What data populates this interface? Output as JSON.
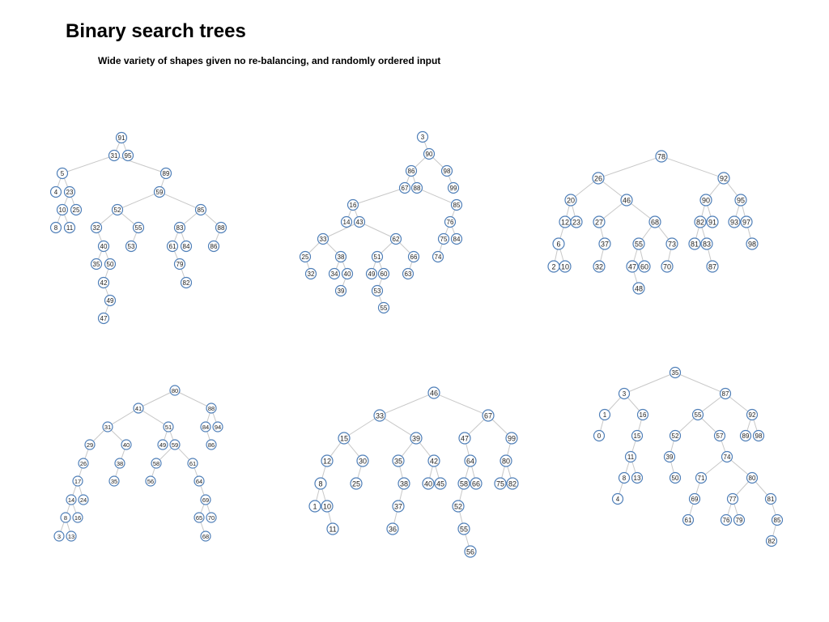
{
  "title": "Binary search trees",
  "subtitle": "Wide variety of shapes given no re-balancing, and randomly ordered input",
  "colors": {
    "node_stroke": "#4f7fb8",
    "edge": "#c8c8c8",
    "node_fill": "#ffffff"
  },
  "trees": [
    {
      "nodes": [
        {
          "id": "91",
          "label": "91"
        },
        {
          "id": "31",
          "label": "31",
          "parent": "91"
        },
        {
          "id": "95",
          "label": "95",
          "parent": "91"
        },
        {
          "id": "5",
          "label": "5",
          "parent": "31"
        },
        {
          "id": "89",
          "label": "89",
          "parent": "31"
        },
        {
          "id": "4",
          "label": "4",
          "parent": "5"
        },
        {
          "id": "23",
          "label": "23",
          "parent": "5"
        },
        {
          "id": "10",
          "label": "10",
          "parent": "23"
        },
        {
          "id": "25",
          "label": "25",
          "parent": "23"
        },
        {
          "id": "8",
          "label": "8",
          "parent": "10"
        },
        {
          "id": "11",
          "label": "11",
          "parent": "10"
        },
        {
          "id": "59",
          "label": "59",
          "parent": "89"
        },
        {
          "id": "52",
          "label": "52",
          "parent": "59"
        },
        {
          "id": "85",
          "label": "85",
          "parent": "59"
        },
        {
          "id": "32",
          "label": "32",
          "parent": "52"
        },
        {
          "id": "55",
          "label": "55",
          "parent": "52"
        },
        {
          "id": "40",
          "label": "40",
          "parent": "32"
        },
        {
          "id": "35",
          "label": "35",
          "parent": "40"
        },
        {
          "id": "50",
          "label": "50",
          "parent": "40"
        },
        {
          "id": "42",
          "label": "42",
          "parent": "50"
        },
        {
          "id": "49",
          "label": "49",
          "parent": "42"
        },
        {
          "id": "47",
          "label": "47",
          "parent": "49"
        },
        {
          "id": "53",
          "label": "53",
          "parent": "55"
        },
        {
          "id": "83",
          "label": "83",
          "parent": "85"
        },
        {
          "id": "88",
          "label": "88",
          "parent": "85"
        },
        {
          "id": "61",
          "label": "61",
          "parent": "83"
        },
        {
          "id": "84",
          "label": "84",
          "parent": "83"
        },
        {
          "id": "79",
          "label": "79",
          "parent": "61"
        },
        {
          "id": "82",
          "label": "82",
          "parent": "79"
        },
        {
          "id": "86",
          "label": "86",
          "parent": "88"
        }
      ]
    },
    {
      "nodes": [
        {
          "id": "3",
          "label": "3"
        },
        {
          "id": "90",
          "label": "90",
          "parent": "3"
        },
        {
          "id": "86",
          "label": "86",
          "parent": "90"
        },
        {
          "id": "98",
          "label": "98",
          "parent": "90"
        },
        {
          "id": "67",
          "label": "67",
          "parent": "86"
        },
        {
          "id": "88",
          "label": "88",
          "parent": "86"
        },
        {
          "id": "99",
          "label": "99",
          "parent": "98"
        },
        {
          "id": "16",
          "label": "16",
          "parent": "67"
        },
        {
          "id": "85",
          "label": "85",
          "parent": "88"
        },
        {
          "id": "14",
          "label": "14",
          "parent": "16"
        },
        {
          "id": "43",
          "label": "43",
          "parent": "16"
        },
        {
          "id": "33",
          "label": "33",
          "parent": "43"
        },
        {
          "id": "62",
          "label": "62",
          "parent": "43"
        },
        {
          "id": "25",
          "label": "25",
          "parent": "33"
        },
        {
          "id": "38",
          "label": "38",
          "parent": "33"
        },
        {
          "id": "32",
          "label": "32",
          "parent": "25"
        },
        {
          "id": "34",
          "label": "34",
          "parent": "38"
        },
        {
          "id": "40",
          "label": "40",
          "parent": "38"
        },
        {
          "id": "39",
          "label": "39",
          "parent": "40"
        },
        {
          "id": "51",
          "label": "51",
          "parent": "62"
        },
        {
          "id": "66",
          "label": "66",
          "parent": "62"
        },
        {
          "id": "49",
          "label": "49",
          "parent": "51"
        },
        {
          "id": "60",
          "label": "60",
          "parent": "51"
        },
        {
          "id": "53",
          "label": "53",
          "parent": "60"
        },
        {
          "id": "55",
          "label": "55",
          "parent": "53"
        },
        {
          "id": "63",
          "label": "63",
          "parent": "66"
        },
        {
          "id": "76",
          "label": "76",
          "parent": "85"
        },
        {
          "id": "75",
          "label": "75",
          "parent": "76"
        },
        {
          "id": "84",
          "label": "84",
          "parent": "76"
        },
        {
          "id": "74",
          "label": "74",
          "parent": "75"
        }
      ]
    },
    {
      "nodes": [
        {
          "id": "78",
          "label": "78"
        },
        {
          "id": "26",
          "label": "26",
          "parent": "78"
        },
        {
          "id": "92",
          "label": "92",
          "parent": "78"
        },
        {
          "id": "20",
          "label": "20",
          "parent": "26"
        },
        {
          "id": "46",
          "label": "46",
          "parent": "26"
        },
        {
          "id": "90",
          "label": "90",
          "parent": "92"
        },
        {
          "id": "95",
          "label": "95",
          "parent": "92"
        },
        {
          "id": "12",
          "label": "12",
          "parent": "20"
        },
        {
          "id": "23",
          "label": "23",
          "parent": "20"
        },
        {
          "id": "27",
          "label": "27",
          "parent": "46"
        },
        {
          "id": "68",
          "label": "68",
          "parent": "46"
        },
        {
          "id": "82",
          "label": "82",
          "parent": "90"
        },
        {
          "id": "91",
          "label": "91",
          "parent": "90"
        },
        {
          "id": "93",
          "label": "93",
          "parent": "95"
        },
        {
          "id": "97",
          "label": "97",
          "parent": "95"
        },
        {
          "id": "6",
          "label": "6",
          "parent": "12"
        },
        {
          "id": "37",
          "label": "37",
          "parent": "27"
        },
        {
          "id": "55",
          "label": "55",
          "parent": "68"
        },
        {
          "id": "73",
          "label": "73",
          "parent": "68"
        },
        {
          "id": "81",
          "label": "81",
          "parent": "82"
        },
        {
          "id": "83",
          "label": "83",
          "parent": "82"
        },
        {
          "id": "98",
          "label": "98",
          "parent": "97"
        },
        {
          "id": "2",
          "label": "2",
          "parent": "6"
        },
        {
          "id": "10",
          "label": "10",
          "parent": "6"
        },
        {
          "id": "32",
          "label": "32",
          "parent": "37"
        },
        {
          "id": "47",
          "label": "47",
          "parent": "55"
        },
        {
          "id": "60",
          "label": "60",
          "parent": "55"
        },
        {
          "id": "70",
          "label": "70",
          "parent": "73"
        },
        {
          "id": "87",
          "label": "87",
          "parent": "83"
        },
        {
          "id": "48",
          "label": "48",
          "parent": "47"
        }
      ]
    },
    {
      "nodes": [
        {
          "id": "80",
          "label": "80"
        },
        {
          "id": "41",
          "label": "41",
          "parent": "80"
        },
        {
          "id": "88",
          "label": "88",
          "parent": "80"
        },
        {
          "id": "31",
          "label": "31",
          "parent": "41"
        },
        {
          "id": "51",
          "label": "51",
          "parent": "41"
        },
        {
          "id": "84",
          "label": "84",
          "parent": "88"
        },
        {
          "id": "94",
          "label": "94",
          "parent": "88"
        },
        {
          "id": "29",
          "label": "29",
          "parent": "31"
        },
        {
          "id": "40",
          "label": "40",
          "parent": "31"
        },
        {
          "id": "49",
          "label": "49",
          "parent": "51"
        },
        {
          "id": "59",
          "label": "59",
          "parent": "51"
        },
        {
          "id": "86",
          "label": "86",
          "parent": "84"
        },
        {
          "id": "26",
          "label": "26",
          "parent": "29"
        },
        {
          "id": "38",
          "label": "38",
          "parent": "40"
        },
        {
          "id": "58",
          "label": "58",
          "parent": "59"
        },
        {
          "id": "61",
          "label": "61",
          "parent": "59"
        },
        {
          "id": "17",
          "label": "17",
          "parent": "26"
        },
        {
          "id": "35",
          "label": "35",
          "parent": "38"
        },
        {
          "id": "56",
          "label": "56",
          "parent": "58"
        },
        {
          "id": "64",
          "label": "64",
          "parent": "61"
        },
        {
          "id": "14",
          "label": "14",
          "parent": "17"
        },
        {
          "id": "24",
          "label": "24",
          "parent": "17"
        },
        {
          "id": "69",
          "label": "69",
          "parent": "64"
        },
        {
          "id": "8",
          "label": "8",
          "parent": "14"
        },
        {
          "id": "16",
          "label": "16",
          "parent": "14"
        },
        {
          "id": "65",
          "label": "65",
          "parent": "69"
        },
        {
          "id": "70",
          "label": "70",
          "parent": "69"
        },
        {
          "id": "3",
          "label": "3",
          "parent": "8"
        },
        {
          "id": "13",
          "label": "13",
          "parent": "8"
        },
        {
          "id": "68",
          "label": "68",
          "parent": "65"
        }
      ]
    },
    {
      "nodes": [
        {
          "id": "46",
          "label": "46"
        },
        {
          "id": "33",
          "label": "33",
          "parent": "46"
        },
        {
          "id": "67",
          "label": "67",
          "parent": "46"
        },
        {
          "id": "15",
          "label": "15",
          "parent": "33"
        },
        {
          "id": "39",
          "label": "39",
          "parent": "33"
        },
        {
          "id": "47",
          "label": "47",
          "parent": "67"
        },
        {
          "id": "99",
          "label": "99",
          "parent": "67"
        },
        {
          "id": "12",
          "label": "12",
          "parent": "15"
        },
        {
          "id": "30",
          "label": "30",
          "parent": "15"
        },
        {
          "id": "35",
          "label": "35",
          "parent": "39"
        },
        {
          "id": "42",
          "label": "42",
          "parent": "39"
        },
        {
          "id": "64",
          "label": "64",
          "parent": "47"
        },
        {
          "id": "80",
          "label": "80",
          "parent": "99"
        },
        {
          "id": "8",
          "label": "8",
          "parent": "12"
        },
        {
          "id": "25",
          "label": "25",
          "parent": "30"
        },
        {
          "id": "38",
          "label": "38",
          "parent": "35"
        },
        {
          "id": "40",
          "label": "40",
          "parent": "42"
        },
        {
          "id": "45",
          "label": "45",
          "parent": "42"
        },
        {
          "id": "58",
          "label": "58",
          "parent": "64"
        },
        {
          "id": "66",
          "label": "66",
          "parent": "64"
        },
        {
          "id": "75",
          "label": "75",
          "parent": "80"
        },
        {
          "id": "82",
          "label": "82",
          "parent": "80"
        },
        {
          "id": "1",
          "label": "1",
          "parent": "8"
        },
        {
          "id": "10",
          "label": "10",
          "parent": "8"
        },
        {
          "id": "37",
          "label": "37",
          "parent": "38"
        },
        {
          "id": "52",
          "label": "52",
          "parent": "58"
        },
        {
          "id": "11",
          "label": "11",
          "parent": "10"
        },
        {
          "id": "36",
          "label": "36",
          "parent": "37"
        },
        {
          "id": "55",
          "label": "55",
          "parent": "52"
        },
        {
          "id": "56",
          "label": "56",
          "parent": "55"
        }
      ]
    },
    {
      "nodes": [
        {
          "id": "35",
          "label": "35"
        },
        {
          "id": "3",
          "label": "3",
          "parent": "35"
        },
        {
          "id": "87",
          "label": "87",
          "parent": "35"
        },
        {
          "id": "1",
          "label": "1",
          "parent": "3"
        },
        {
          "id": "16",
          "label": "16",
          "parent": "3"
        },
        {
          "id": "55",
          "label": "55",
          "parent": "87"
        },
        {
          "id": "92",
          "label": "92",
          "parent": "87"
        },
        {
          "id": "0",
          "label": "0",
          "parent": "1"
        },
        {
          "id": "15",
          "label": "15",
          "parent": "16"
        },
        {
          "id": "52",
          "label": "52",
          "parent": "55"
        },
        {
          "id": "57",
          "label": "57",
          "parent": "55"
        },
        {
          "id": "89",
          "label": "89",
          "parent": "92"
        },
        {
          "id": "98",
          "label": "98",
          "parent": "92"
        },
        {
          "id": "11",
          "label": "11",
          "parent": "15"
        },
        {
          "id": "39",
          "label": "39",
          "parent": "52"
        },
        {
          "id": "74",
          "label": "74",
          "parent": "57"
        },
        {
          "id": "8",
          "label": "8",
          "parent": "11"
        },
        {
          "id": "13",
          "label": "13",
          "parent": "11"
        },
        {
          "id": "50",
          "label": "50",
          "parent": "39"
        },
        {
          "id": "71",
          "label": "71",
          "parent": "74"
        },
        {
          "id": "80",
          "label": "80",
          "parent": "74"
        },
        {
          "id": "4",
          "label": "4",
          "parent": "8"
        },
        {
          "id": "69",
          "label": "69",
          "parent": "71"
        },
        {
          "id": "77",
          "label": "77",
          "parent": "80"
        },
        {
          "id": "81",
          "label": "81",
          "parent": "80"
        },
        {
          "id": "61",
          "label": "61",
          "parent": "69"
        },
        {
          "id": "76",
          "label": "76",
          "parent": "77"
        },
        {
          "id": "79",
          "label": "79",
          "parent": "77"
        },
        {
          "id": "85",
          "label": "85",
          "parent": "81"
        },
        {
          "id": "82",
          "label": "82",
          "parent": "85"
        }
      ]
    }
  ]
}
